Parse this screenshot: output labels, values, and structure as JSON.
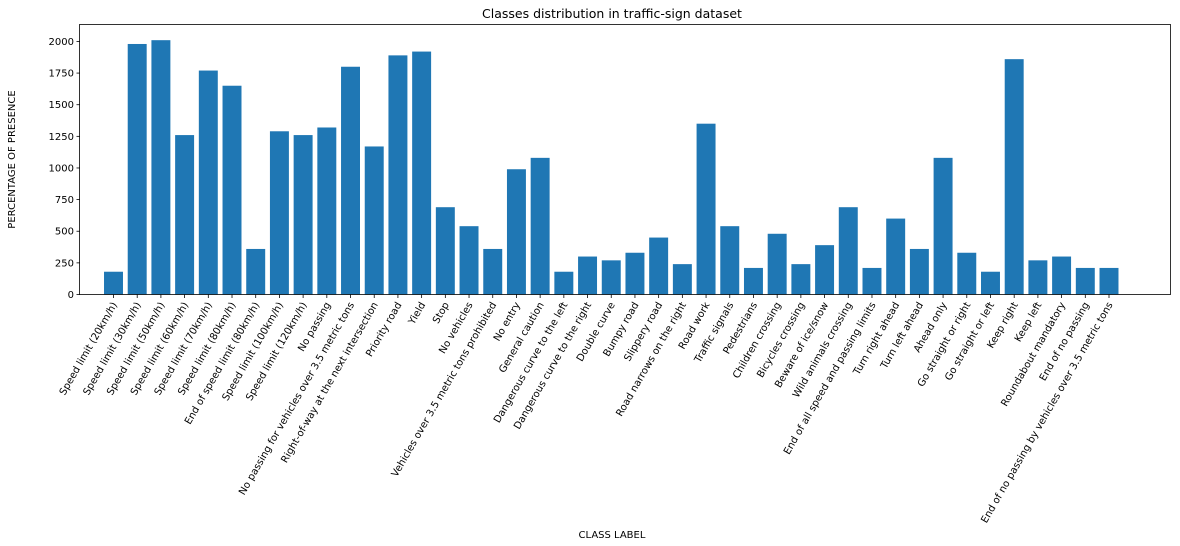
{
  "chart_data": {
    "type": "bar",
    "title": "Classes distribution in traffic-sign dataset",
    "xlabel": "CLASS LABEL",
    "ylabel": "PERCENTAGE OF PRESENCE",
    "ylim": [
      0,
      2130
    ],
    "yticks": [
      0,
      250,
      500,
      750,
      1000,
      1250,
      1500,
      1750,
      2000
    ],
    "grid": false,
    "bar_color": "#1f77b4",
    "categories": [
      "Speed limit (20km/h)",
      "Speed limit (30km/h)",
      "Speed limit (50km/h)",
      "Speed limit (60km/h)",
      "Speed limit (70km/h)",
      "Speed limit (80km/h)",
      "End of speed limit (80km/h)",
      "Speed limit (100km/h)",
      "Speed limit (120km/h)",
      "No passing",
      "No passing for vehicles over 3.5 metric tons",
      "Right-of-way at the next intersection",
      "Priority road",
      "Yield",
      "Stop",
      "No vehicles",
      "Vehicles over 3.5 metric tons prohibited",
      "No entry",
      "General caution",
      "Dangerous curve to the left",
      "Dangerous curve to the right",
      "Double curve",
      "Bumpy road",
      "Slippery road",
      "Road narrows on the right",
      "Road work",
      "Traffic signals",
      "Pedestrians",
      "Children crossing",
      "Bicycles crossing",
      "Beware of ice/snow",
      "Wild animals crossing",
      "End of all speed and passing limits",
      "Turn right ahead",
      "Turn left ahead",
      "Ahead only",
      "Go straight or right",
      "Go straight or left",
      "Keep right",
      "Keep left",
      "Roundabout mandatory",
      "End of no passing",
      "End of no passing by vehicles over 3.5 metric tons"
    ],
    "values": [
      180,
      1980,
      2010,
      1260,
      1770,
      1650,
      360,
      1290,
      1260,
      1320,
      1800,
      1170,
      1890,
      1920,
      690,
      540,
      360,
      990,
      1080,
      180,
      300,
      270,
      330,
      450,
      240,
      1350,
      540,
      210,
      480,
      240,
      390,
      690,
      210,
      600,
      360,
      1080,
      330,
      180,
      1860,
      270,
      300,
      210,
      210
    ]
  }
}
